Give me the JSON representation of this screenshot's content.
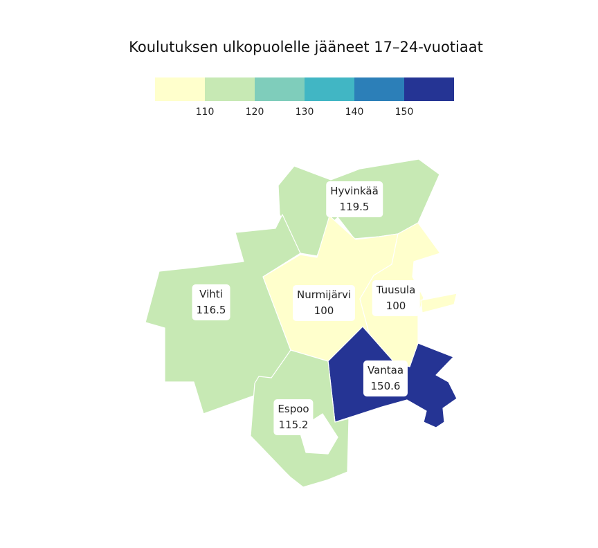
{
  "title": "Koulutuksen ulkopuolelle jääneet 17–24-vuotiaat",
  "legend": {
    "colors": [
      "#ffffcc",
      "#c7e9b4",
      "#7fcdbb",
      "#41b6c4",
      "#2c7fb8",
      "#253494"
    ],
    "ticks": [
      "110",
      "120",
      "130",
      "140",
      "150"
    ]
  },
  "chart_data": {
    "type": "choropleth",
    "title": "Koulutuksen ulkopuolelle jääneet 17–24-vuotiaat",
    "scale_breaks": [
      110,
      120,
      130,
      140,
      150
    ],
    "regions": [
      {
        "name": "Hyvinkää",
        "value": "119.5",
        "color": "#c7e9b4"
      },
      {
        "name": "Vihti",
        "value": "116.5",
        "color": "#c7e9b4"
      },
      {
        "name": "Nurmijärvi",
        "value": "100",
        "color": "#ffffcc"
      },
      {
        "name": "Tuusula",
        "value": "100",
        "color": "#ffffcc"
      },
      {
        "name": "Vantaa",
        "value": "150.6",
        "color": "#253494"
      },
      {
        "name": "Espoo",
        "value": "115.2",
        "color": "#c7e9b4"
      }
    ]
  }
}
